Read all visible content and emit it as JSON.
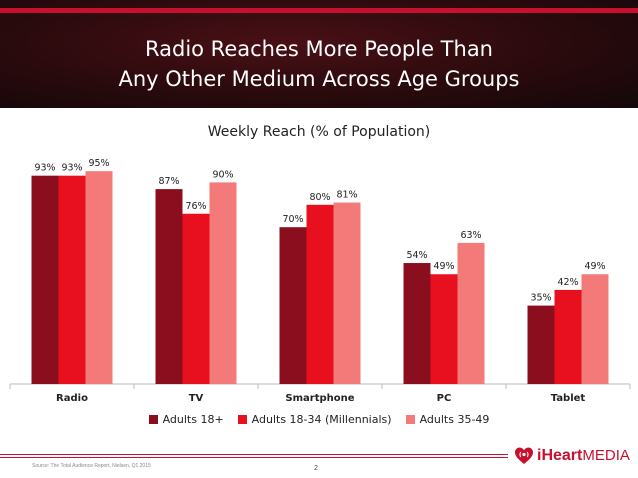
{
  "header": {
    "title_line1": "Radio Reaches More People Than",
    "title_line2": "Any Other Medium Across Age Groups"
  },
  "chart_data": {
    "type": "bar",
    "title": "Weekly Reach (% of Population)",
    "categories": [
      "Radio",
      "TV",
      "Smartphone",
      "PC",
      "Tablet"
    ],
    "series": [
      {
        "name": "Adults 18+",
        "values": [
          93,
          87,
          70,
          54,
          35
        ],
        "color": "#8b0e1e"
      },
      {
        "name": "Adults 18-34 (Millennials)",
        "values": [
          93,
          76,
          80,
          49,
          42
        ],
        "color": "#e8101e"
      },
      {
        "name": "Adults 35-49",
        "values": [
          95,
          90,
          81,
          63,
          49
        ],
        "color": "#f47a7a"
      }
    ],
    "value_suffix": "%",
    "ylim": [
      0,
      100
    ],
    "grid": false,
    "legend_position": "bottom"
  },
  "footer": {
    "source": "Source: The Total Audience Report, Nielsen, Q1 2015",
    "page_number": "2",
    "logo_word1": "iHeart",
    "logo_word2": "MEDIA"
  },
  "colors": {
    "accent": "#c8102e",
    "header_bg": "#2a0a0d"
  }
}
